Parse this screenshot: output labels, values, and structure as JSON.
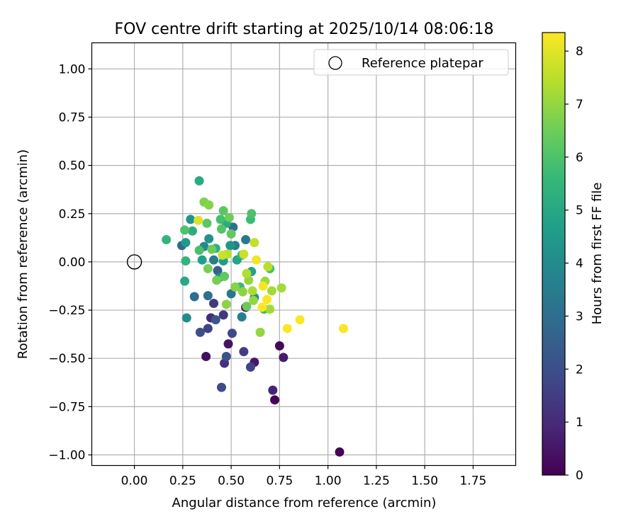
{
  "figure": {
    "title": "FOV centre drift starting at 2025/10/14 08:06:18"
  },
  "chart_data": {
    "type": "scatter",
    "title": "FOV centre drift starting at 2025/10/14 08:06:18",
    "xlabel": "Angular distance from reference (arcmin)",
    "ylabel": "Rotation from reference (arcmin)",
    "xlim": [
      -0.22,
      1.97
    ],
    "ylim": [
      -1.055,
      1.135
    ],
    "xticks": [
      0.0,
      0.25,
      0.5,
      0.75,
      1.0,
      1.25,
      1.5,
      1.75
    ],
    "xtick_labels": [
      "0.00",
      "0.25",
      "0.50",
      "0.75",
      "1.00",
      "1.25",
      "1.50",
      "1.75"
    ],
    "yticks": [
      1.0,
      0.75,
      0.5,
      0.25,
      0.0,
      -0.25,
      -0.5,
      -0.75,
      -1.0
    ],
    "ytick_labels": [
      "1.00",
      "0.75",
      "0.50",
      "0.25",
      "0.00",
      "−0.25",
      "−0.50",
      "−0.75",
      "−1.00"
    ],
    "grid": true,
    "legend": {
      "placement": "top-right",
      "entries": [
        {
          "label": "Reference platepar",
          "marker": "open-circle"
        }
      ]
    },
    "reference_point": {
      "x": 0.0,
      "y": 0.0
    },
    "colorbar": {
      "label": "Hours from first FF file",
      "min": 0,
      "max": 8.35,
      "ticks": [
        0,
        1,
        2,
        3,
        4,
        5,
        6,
        7,
        8
      ],
      "tick_labels": [
        "0",
        "1",
        "2",
        "3",
        "4",
        "5",
        "6",
        "7",
        "8"
      ],
      "colormap": "viridis"
    },
    "points": [
      {
        "x": 1.06,
        "y": -0.985,
        "t": 0.05
      },
      {
        "x": 0.725,
        "y": -0.715,
        "t": 0.1
      },
      {
        "x": 0.75,
        "y": -0.435,
        "t": 0.2
      },
      {
        "x": 0.37,
        "y": -0.49,
        "t": 0.3
      },
      {
        "x": 0.485,
        "y": -0.425,
        "t": 0.45
      },
      {
        "x": 0.62,
        "y": -0.52,
        "t": 0.55
      },
      {
        "x": 0.77,
        "y": -0.495,
        "t": 0.65
      },
      {
        "x": 0.715,
        "y": -0.665,
        "t": 0.8
      },
      {
        "x": 0.575,
        "y": -0.235,
        "t": 0.1
      },
      {
        "x": 0.395,
        "y": -0.29,
        "t": 1.0
      },
      {
        "x": 0.465,
        "y": -0.525,
        "t": 1.2
      },
      {
        "x": 0.46,
        "y": -0.275,
        "t": 1.3
      },
      {
        "x": 0.41,
        "y": -0.215,
        "t": 1.4
      },
      {
        "x": 0.565,
        "y": -0.465,
        "t": 1.5
      },
      {
        "x": 0.38,
        "y": -0.345,
        "t": 1.6
      },
      {
        "x": 0.6,
        "y": -0.545,
        "t": 1.7
      },
      {
        "x": 0.45,
        "y": -0.65,
        "t": 1.9
      },
      {
        "x": 0.505,
        "y": -0.37,
        "t": 1.8
      },
      {
        "x": 0.34,
        "y": -0.365,
        "t": 2.0
      },
      {
        "x": 0.475,
        "y": -0.49,
        "t": 2.1
      },
      {
        "x": 0.42,
        "y": -0.3,
        "t": 2.3
      },
      {
        "x": 0.43,
        "y": -0.045,
        "t": 2.6
      },
      {
        "x": 0.245,
        "y": 0.085,
        "t": 2.8
      },
      {
        "x": 0.31,
        "y": -0.18,
        "t": 3.0
      },
      {
        "x": 0.38,
        "y": -0.175,
        "t": 3.1
      },
      {
        "x": 0.5,
        "y": -0.165,
        "t": 3.3
      },
      {
        "x": 0.51,
        "y": 0.18,
        "t": 3.2
      },
      {
        "x": 0.575,
        "y": 0.115,
        "t": 3.4
      },
      {
        "x": 0.41,
        "y": 0.01,
        "t": 3.5
      },
      {
        "x": 0.52,
        "y": 0.085,
        "t": 3.6
      },
      {
        "x": 0.555,
        "y": -0.285,
        "t": 3.6
      },
      {
        "x": 0.44,
        "y": -0.08,
        "t": 3.8
      },
      {
        "x": 0.36,
        "y": 0.08,
        "t": 3.9
      },
      {
        "x": 0.27,
        "y": -0.29,
        "t": 4.0
      },
      {
        "x": 0.62,
        "y": -0.185,
        "t": 4.1
      },
      {
        "x": 0.385,
        "y": 0.12,
        "t": 4.2
      },
      {
        "x": 0.29,
        "y": 0.22,
        "t": 4.3
      },
      {
        "x": 0.495,
        "y": 0.085,
        "t": 4.4
      },
      {
        "x": 0.265,
        "y": 0.1,
        "t": 4.5
      },
      {
        "x": 0.46,
        "y": 0.005,
        "t": 4.6
      },
      {
        "x": 0.35,
        "y": 0.01,
        "t": 4.7
      },
      {
        "x": 0.605,
        "y": -0.05,
        "t": 4.8
      },
      {
        "x": 0.53,
        "y": 0.01,
        "t": 4.9
      },
      {
        "x": 0.26,
        "y": -0.1,
        "t": 5.0
      },
      {
        "x": 0.335,
        "y": 0.42,
        "t": 5.1
      },
      {
        "x": 0.475,
        "y": 0.2,
        "t": 5.1
      },
      {
        "x": 0.3,
        "y": 0.16,
        "t": 5.2
      },
      {
        "x": 0.42,
        "y": 0.07,
        "t": 5.3
      },
      {
        "x": 0.265,
        "y": 0.005,
        "t": 5.4
      },
      {
        "x": 0.165,
        "y": 0.115,
        "t": 5.5
      },
      {
        "x": 0.555,
        "y": 0.035,
        "t": 5.5
      },
      {
        "x": 0.67,
        "y": -0.245,
        "t": 5.6
      },
      {
        "x": 0.6,
        "y": 0.22,
        "t": 5.7
      },
      {
        "x": 0.545,
        "y": -0.13,
        "t": 5.6
      },
      {
        "x": 0.7,
        "y": -0.035,
        "t": 5.8
      },
      {
        "x": 0.445,
        "y": 0.22,
        "t": 5.8
      },
      {
        "x": 0.335,
        "y": 0.06,
        "t": 5.9
      },
      {
        "x": 0.26,
        "y": 0.165,
        "t": 6.0
      },
      {
        "x": 0.605,
        "y": 0.25,
        "t": 6.0
      },
      {
        "x": 0.45,
        "y": 0.17,
        "t": 6.1
      },
      {
        "x": 0.46,
        "y": 0.265,
        "t": 6.2
      },
      {
        "x": 0.375,
        "y": 0.2,
        "t": 6.2
      },
      {
        "x": 0.5,
        "y": 0.145,
        "t": 6.3
      },
      {
        "x": 0.465,
        "y": -0.075,
        "t": 6.3
      },
      {
        "x": 0.58,
        "y": -0.23,
        "t": 6.4
      },
      {
        "x": 0.4,
        "y": 0.065,
        "t": 6.5
      },
      {
        "x": 0.49,
        "y": 0.23,
        "t": 6.5
      },
      {
        "x": 0.425,
        "y": -0.095,
        "t": 6.6
      },
      {
        "x": 0.38,
        "y": -0.035,
        "t": 6.6
      },
      {
        "x": 0.36,
        "y": 0.31,
        "t": 6.7
      },
      {
        "x": 0.385,
        "y": 0.295,
        "t": 6.8
      },
      {
        "x": 0.52,
        "y": -0.13,
        "t": 6.8
      },
      {
        "x": 0.475,
        "y": -0.22,
        "t": 6.9
      },
      {
        "x": 0.56,
        "y": -0.155,
        "t": 6.9
      },
      {
        "x": 0.59,
        "y": -0.095,
        "t": 7.0
      },
      {
        "x": 0.615,
        "y": -0.2,
        "t": 7.0
      },
      {
        "x": 0.65,
        "y": -0.365,
        "t": 7.0
      },
      {
        "x": 0.675,
        "y": -0.1,
        "t": 7.1
      },
      {
        "x": 0.7,
        "y": -0.245,
        "t": 7.2
      },
      {
        "x": 0.71,
        "y": -0.15,
        "t": 7.2
      },
      {
        "x": 0.76,
        "y": -0.135,
        "t": 7.2
      },
      {
        "x": 0.61,
        "y": -0.15,
        "t": 7.3
      },
      {
        "x": 0.58,
        "y": -0.06,
        "t": 7.4
      },
      {
        "x": 0.69,
        "y": -0.025,
        "t": 7.5
      },
      {
        "x": 0.48,
        "y": 0.04,
        "t": 7.5
      },
      {
        "x": 0.62,
        "y": 0.1,
        "t": 7.6
      },
      {
        "x": 0.565,
        "y": 0.04,
        "t": 7.7
      },
      {
        "x": 0.455,
        "y": 0.035,
        "t": 7.7
      },
      {
        "x": 0.33,
        "y": 0.215,
        "t": 7.9
      },
      {
        "x": 0.63,
        "y": 0.01,
        "t": 8.2
      },
      {
        "x": 0.665,
        "y": -0.125,
        "t": 8.2
      },
      {
        "x": 0.685,
        "y": -0.195,
        "t": 8.3
      },
      {
        "x": 0.66,
        "y": -0.235,
        "t": 8.3
      },
      {
        "x": 0.79,
        "y": -0.345,
        "t": 8.3
      },
      {
        "x": 0.855,
        "y": -0.3,
        "t": 8.3
      },
      {
        "x": 1.08,
        "y": -0.345,
        "t": 8.3
      }
    ]
  }
}
